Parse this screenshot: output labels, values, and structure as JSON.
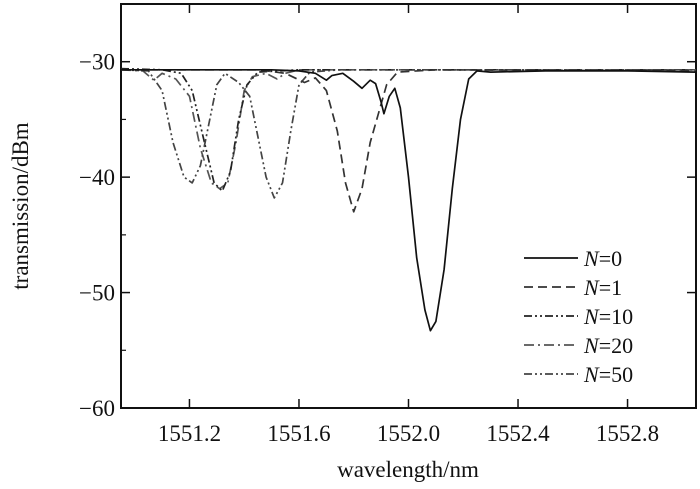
{
  "chart_data": {
    "type": "line",
    "title": "",
    "xlabel": "wavelength/nm",
    "ylabel": "transmission/dBm",
    "xlim": [
      1550.95,
      1553.05
    ],
    "ylim": [
      -60,
      -25
    ],
    "xticks": [
      1551.2,
      1551.6,
      1552.0,
      1552.4,
      1552.8
    ],
    "xtick_labels": [
      "1551.2",
      "1551.6",
      "1552.0",
      "1552.4",
      "1552.8"
    ],
    "yticks": [
      -30,
      -40,
      -50,
      -60
    ],
    "ytick_labels": [
      "−30",
      "−40",
      "−50",
      "−60"
    ],
    "grid": false,
    "legend_position": "bottom-right",
    "baseline": -30.7,
    "series": [
      {
        "name": "N=0",
        "legend_prefix": "N",
        "legend_suffix": "=0",
        "style": "solid",
        "color": "#111111",
        "points": [
          [
            1550.95,
            -30.7
          ],
          [
            1551.5,
            -30.7
          ],
          [
            1551.6,
            -30.8
          ],
          [
            1551.66,
            -31.0
          ],
          [
            1551.7,
            -31.6
          ],
          [
            1551.72,
            -31.2
          ],
          [
            1551.76,
            -31.0
          ],
          [
            1551.8,
            -31.7
          ],
          [
            1551.83,
            -32.3
          ],
          [
            1551.86,
            -31.6
          ],
          [
            1551.88,
            -31.9
          ],
          [
            1551.9,
            -33.5
          ],
          [
            1551.91,
            -34.5
          ],
          [
            1551.93,
            -33.0
          ],
          [
            1551.95,
            -32.3
          ],
          [
            1551.97,
            -34.0
          ],
          [
            1552.0,
            -40.0
          ],
          [
            1552.03,
            -47.0
          ],
          [
            1552.06,
            -51.5
          ],
          [
            1552.08,
            -53.3
          ],
          [
            1552.1,
            -52.5
          ],
          [
            1552.13,
            -48.0
          ],
          [
            1552.16,
            -41.0
          ],
          [
            1552.19,
            -35.0
          ],
          [
            1552.22,
            -31.5
          ],
          [
            1552.25,
            -30.8
          ],
          [
            1552.3,
            -30.9
          ],
          [
            1552.5,
            -30.8
          ],
          [
            1552.8,
            -30.8
          ],
          [
            1553.05,
            -30.9
          ]
        ]
      },
      {
        "name": "N=1",
        "legend_prefix": "N",
        "legend_suffix": "=1",
        "style": "dashed",
        "color": "#333333",
        "points": [
          [
            1550.95,
            -30.7
          ],
          [
            1551.45,
            -30.7
          ],
          [
            1551.55,
            -31.0
          ],
          [
            1551.62,
            -31.8
          ],
          [
            1551.66,
            -31.4
          ],
          [
            1551.7,
            -32.5
          ],
          [
            1551.74,
            -36.0
          ],
          [
            1551.77,
            -40.5
          ],
          [
            1551.8,
            -43.0
          ],
          [
            1551.83,
            -41.0
          ],
          [
            1551.86,
            -37.0
          ],
          [
            1551.89,
            -34.5
          ],
          [
            1551.92,
            -32.0
          ],
          [
            1551.96,
            -30.9
          ],
          [
            1552.1,
            -30.7
          ],
          [
            1553.05,
            -30.8
          ]
        ]
      },
      {
        "name": "N=10",
        "legend_prefix": "N",
        "legend_suffix": "=10",
        "style": "dashdotdot",
        "color": "#222222",
        "points": [
          [
            1550.95,
            -30.6
          ],
          [
            1551.1,
            -30.7
          ],
          [
            1551.17,
            -31.0
          ],
          [
            1551.21,
            -32.5
          ],
          [
            1551.25,
            -36.5
          ],
          [
            1551.29,
            -40.5
          ],
          [
            1551.32,
            -41.2
          ],
          [
            1551.35,
            -39.5
          ],
          [
            1551.38,
            -35.0
          ],
          [
            1551.41,
            -32.0
          ],
          [
            1551.45,
            -30.9
          ],
          [
            1551.6,
            -30.7
          ],
          [
            1553.05,
            -30.7
          ]
        ]
      },
      {
        "name": "N=20",
        "legend_prefix": "N",
        "legend_suffix": "=20",
        "style": "dashdot",
        "color": "#555555",
        "points": [
          [
            1550.95,
            -30.7
          ],
          [
            1551.03,
            -30.8
          ],
          [
            1551.07,
            -31.6
          ],
          [
            1551.1,
            -31.0
          ],
          [
            1551.15,
            -31.5
          ],
          [
            1551.2,
            -33.0
          ],
          [
            1551.24,
            -37.5
          ],
          [
            1551.28,
            -40.5
          ],
          [
            1551.31,
            -41.0
          ],
          [
            1551.34,
            -40.5
          ],
          [
            1551.37,
            -37.0
          ],
          [
            1551.4,
            -32.5
          ],
          [
            1551.43,
            -31.3
          ],
          [
            1551.48,
            -31.0
          ],
          [
            1551.52,
            -31.5
          ],
          [
            1551.55,
            -31.0
          ],
          [
            1551.6,
            -30.7
          ],
          [
            1553.05,
            -30.7
          ]
        ]
      },
      {
        "name": "N=50",
        "legend_prefix": "N",
        "legend_suffix": "=50",
        "style": "dashdotdot",
        "color": "#444444",
        "points": [
          [
            1550.95,
            -30.7
          ],
          [
            1551.05,
            -30.8
          ],
          [
            1551.1,
            -32.5
          ],
          [
            1551.14,
            -37.0
          ],
          [
            1551.18,
            -40.0
          ],
          [
            1551.21,
            -40.5
          ],
          [
            1551.24,
            -39.0
          ],
          [
            1551.27,
            -35.5
          ],
          [
            1551.3,
            -32.0
          ],
          [
            1551.33,
            -31.0
          ],
          [
            1551.38,
            -31.8
          ],
          [
            1551.42,
            -33.0
          ],
          [
            1551.45,
            -36.5
          ],
          [
            1551.48,
            -40.0
          ],
          [
            1551.51,
            -41.8
          ],
          [
            1551.54,
            -40.5
          ],
          [
            1551.57,
            -36.0
          ],
          [
            1551.6,
            -32.0
          ],
          [
            1551.64,
            -30.9
          ],
          [
            1551.75,
            -30.7
          ],
          [
            1553.05,
            -30.7
          ]
        ]
      }
    ]
  }
}
